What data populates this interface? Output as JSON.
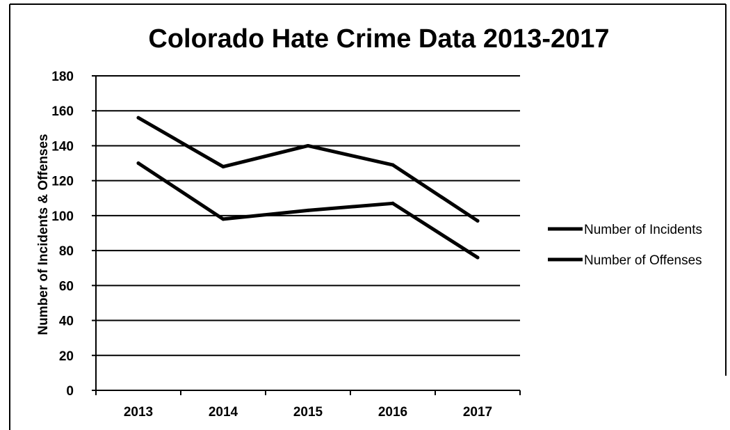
{
  "chart_data": {
    "type": "line",
    "title": "Colorado Hate Crime Data 2013-2017",
    "xlabel": "",
    "ylabel": "Number of Incidents & Offenses",
    "categories": [
      "2013",
      "2014",
      "2015",
      "2016",
      "2017"
    ],
    "ylim": [
      0,
      180
    ],
    "yticks": [
      0,
      20,
      40,
      60,
      80,
      100,
      120,
      140,
      160,
      180
    ],
    "grid": true,
    "legend_position": "right",
    "series": [
      {
        "name": "Number of Incidents",
        "values": [
          130,
          98,
          103,
          107,
          76
        ],
        "color": "#000000"
      },
      {
        "name": "Number of Offenses",
        "values": [
          156,
          128,
          140,
          129,
          97
        ],
        "color": "#000000"
      }
    ]
  }
}
